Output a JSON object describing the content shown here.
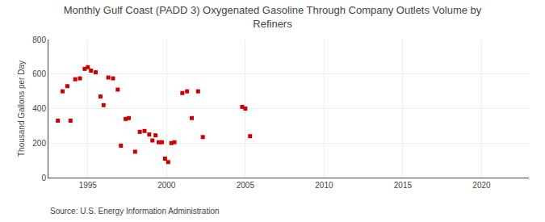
{
  "chart_data": {
    "type": "scatter",
    "title": "Monthly Gulf Coast (PADD 3) Oxygenated Gasoline Through Company Outlets Volume by\nRefiners",
    "ylabel": "Thousand Gallons per Day",
    "annotations": [
      "Source: U.S. Energy Information Administration"
    ],
    "color": "#cc0000",
    "marker": "square",
    "grid": true,
    "xlim": [
      1992.5,
      2023
    ],
    "ylim": [
      0,
      800
    ],
    "xticks": [
      1995,
      2000,
      2005,
      2010,
      2015,
      2020
    ],
    "yticks": [
      0,
      200,
      400,
      600,
      800
    ],
    "x": [
      1993.1,
      1993.4,
      1993.7,
      1993.9,
      1994.2,
      1994.5,
      1994.8,
      1995.0,
      1995.2,
      1995.5,
      1995.8,
      1996.0,
      1996.3,
      1996.6,
      1996.9,
      1997.1,
      1997.4,
      1997.6,
      1998.0,
      1998.3,
      1998.6,
      1998.9,
      1999.1,
      1999.3,
      1999.5,
      1999.7,
      1999.9,
      2000.1,
      2000.3,
      2000.5,
      2001.0,
      2001.3,
      2001.6,
      2002.0,
      2002.3,
      2004.8,
      2005.0,
      2005.3
    ],
    "values": [
      330,
      500,
      530,
      330,
      570,
      575,
      630,
      640,
      620,
      610,
      470,
      420,
      580,
      575,
      510,
      185,
      340,
      345,
      150,
      265,
      270,
      250,
      215,
      245,
      205,
      205,
      110,
      90,
      200,
      205,
      490,
      500,
      345,
      500,
      235,
      410,
      400,
      240
    ]
  }
}
